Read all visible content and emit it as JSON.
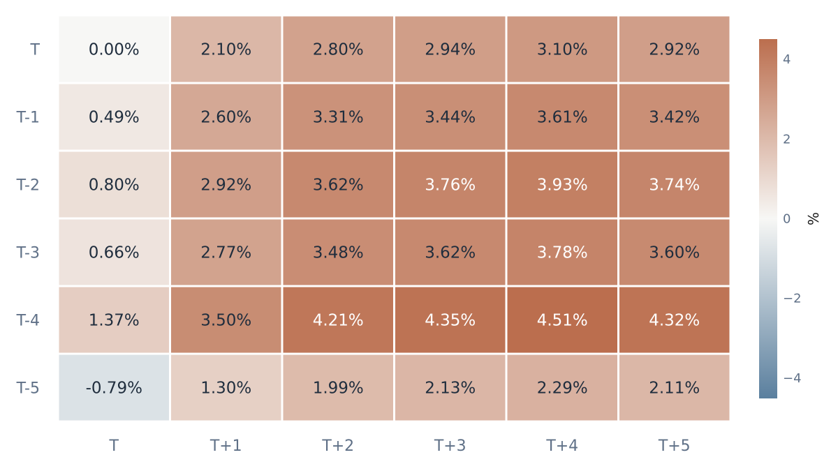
{
  "chart_data": {
    "type": "heatmap",
    "title": "",
    "xlabel": "",
    "ylabel": "",
    "x_categories": [
      "T",
      "T+1",
      "T+2",
      "T+3",
      "T+4",
      "T+5"
    ],
    "y_categories": [
      "T",
      "T-1",
      "T-2",
      "T-3",
      "T-4",
      "T-5"
    ],
    "values": [
      [
        0.0,
        2.1,
        2.8,
        2.94,
        3.1,
        2.92
      ],
      [
        0.49,
        2.6,
        3.31,
        3.44,
        3.61,
        3.42
      ],
      [
        0.8,
        2.92,
        3.62,
        3.76,
        3.93,
        3.74
      ],
      [
        0.66,
        2.77,
        3.48,
        3.62,
        3.78,
        3.6
      ],
      [
        1.37,
        3.5,
        4.21,
        4.35,
        4.51,
        4.32
      ],
      [
        -0.79,
        1.3,
        1.99,
        2.13,
        2.29,
        2.11
      ]
    ],
    "value_labels": [
      [
        "0.00%",
        "2.10%",
        "2.80%",
        "2.94%",
        "3.10%",
        "2.92%"
      ],
      [
        "0.49%",
        "2.60%",
        "3.31%",
        "3.44%",
        "3.61%",
        "3.42%"
      ],
      [
        "0.80%",
        "2.92%",
        "3.62%",
        "3.76%",
        "3.93%",
        "3.74%"
      ],
      [
        "0.66%",
        "2.77%",
        "3.48%",
        "3.62%",
        "3.78%",
        "3.60%"
      ],
      [
        "1.37%",
        "3.50%",
        "4.21%",
        "4.35%",
        "4.51%",
        "4.32%"
      ],
      [
        "-0.79%",
        "1.30%",
        "1.99%",
        "2.13%",
        "2.29%",
        "2.11%"
      ]
    ],
    "colorbar": {
      "title": "%",
      "range": [
        -4.51,
        4.51
      ],
      "ticks": [
        4,
        2,
        0,
        -2,
        -4
      ],
      "tick_labels": [
        "4",
        "2",
        "0",
        "−2",
        "−4"
      ],
      "colors": {
        "negative": "#5a7f9e",
        "mid": "#f7f7f5",
        "positive": "#bb6e4e"
      }
    },
    "label_colors": {
      "dark": "#1f2d3d",
      "light": "#ffffff"
    }
  }
}
